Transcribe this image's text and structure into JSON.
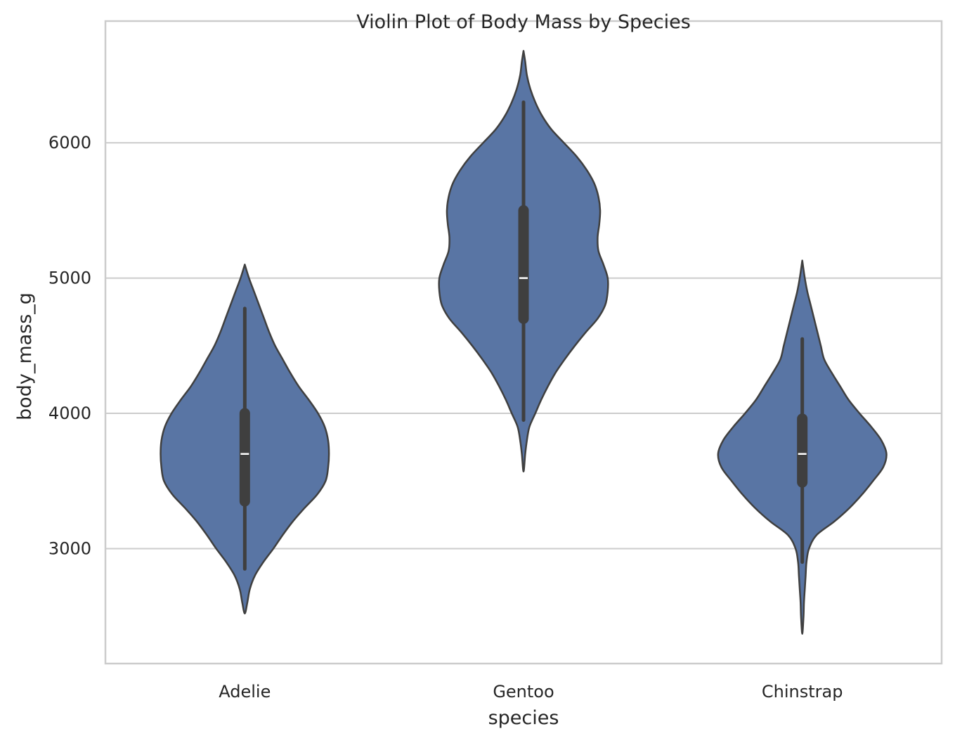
{
  "chart_data": {
    "type": "violin",
    "title": "Violin Plot of Body Mass by Species",
    "xlabel": "species",
    "ylabel": "body_mass_g",
    "ylim": [
      2150,
      6900
    ],
    "yticks": [
      3000,
      4000,
      5000,
      6000
    ],
    "grid": "horizontal",
    "categories": [
      "Adelie",
      "Gentoo",
      "Chinstrap"
    ],
    "colors": {
      "violin_fill": "#5975a4",
      "violin_edge": "#3f3f3f",
      "box": "#3f3f3f",
      "median": "#ffffff",
      "grid": "#cccccc",
      "frame": "#cccccc"
    },
    "violins": [
      {
        "name": "Adelie",
        "min": 2850,
        "q1": 3350,
        "median": 3700,
        "q3": 4000,
        "max": 4775,
        "density_top": 5100,
        "density_bottom": 2520,
        "profile": [
          [
            5100,
            0.0
          ],
          [
            5000,
            0.05
          ],
          [
            4900,
            0.11
          ],
          [
            4800,
            0.17
          ],
          [
            4700,
            0.23
          ],
          [
            4600,
            0.29
          ],
          [
            4500,
            0.36
          ],
          [
            4400,
            0.45
          ],
          [
            4300,
            0.54
          ],
          [
            4200,
            0.64
          ],
          [
            4100,
            0.76
          ],
          [
            4000,
            0.87
          ],
          [
            3900,
            0.95
          ],
          [
            3800,
            0.99
          ],
          [
            3700,
            1.0
          ],
          [
            3600,
            0.99
          ],
          [
            3500,
            0.96
          ],
          [
            3400,
            0.86
          ],
          [
            3300,
            0.71
          ],
          [
            3200,
            0.57
          ],
          [
            3100,
            0.45
          ],
          [
            3000,
            0.34
          ],
          [
            2900,
            0.22
          ],
          [
            2800,
            0.12
          ],
          [
            2700,
            0.06
          ],
          [
            2600,
            0.03
          ],
          [
            2520,
            0.0
          ]
        ]
      },
      {
        "name": "Gentoo",
        "min": 3950,
        "q1": 4700,
        "median": 5000,
        "q3": 5500,
        "max": 6300,
        "density_top": 6680,
        "density_bottom": 3570,
        "profile": [
          [
            6680,
            0.0
          ],
          [
            6600,
            0.02
          ],
          [
            6500,
            0.04
          ],
          [
            6400,
            0.08
          ],
          [
            6300,
            0.14
          ],
          [
            6200,
            0.22
          ],
          [
            6100,
            0.33
          ],
          [
            6000,
            0.48
          ],
          [
            5900,
            0.63
          ],
          [
            5800,
            0.75
          ],
          [
            5700,
            0.84
          ],
          [
            5600,
            0.89
          ],
          [
            5500,
            0.91
          ],
          [
            5400,
            0.9
          ],
          [
            5300,
            0.88
          ],
          [
            5200,
            0.89
          ],
          [
            5100,
            0.95
          ],
          [
            5000,
            1.0
          ],
          [
            4900,
            1.0
          ],
          [
            4800,
            0.97
          ],
          [
            4700,
            0.88
          ],
          [
            4600,
            0.74
          ],
          [
            4500,
            0.61
          ],
          [
            4400,
            0.49
          ],
          [
            4300,
            0.38
          ],
          [
            4200,
            0.29
          ],
          [
            4100,
            0.21
          ],
          [
            4000,
            0.14
          ],
          [
            3900,
            0.07
          ],
          [
            3800,
            0.04
          ],
          [
            3700,
            0.02
          ],
          [
            3570,
            0.0
          ]
        ]
      },
      {
        "name": "Chinstrap",
        "min": 2900,
        "q1": 3490,
        "median": 3700,
        "q3": 3960,
        "max": 4550,
        "density_top": 5130,
        "density_bottom": 2370,
        "profile": [
          [
            5130,
            0.0
          ],
          [
            5000,
            0.03
          ],
          [
            4900,
            0.06
          ],
          [
            4800,
            0.1
          ],
          [
            4700,
            0.14
          ],
          [
            4600,
            0.18
          ],
          [
            4500,
            0.22
          ],
          [
            4400,
            0.26
          ],
          [
            4300,
            0.35
          ],
          [
            4200,
            0.45
          ],
          [
            4100,
            0.55
          ],
          [
            4000,
            0.68
          ],
          [
            3900,
            0.82
          ],
          [
            3800,
            0.94
          ],
          [
            3700,
            1.0
          ],
          [
            3600,
            0.96
          ],
          [
            3500,
            0.84
          ],
          [
            3400,
            0.71
          ],
          [
            3300,
            0.56
          ],
          [
            3200,
            0.38
          ],
          [
            3100,
            0.17
          ],
          [
            3000,
            0.08
          ],
          [
            2900,
            0.05
          ],
          [
            2800,
            0.04
          ],
          [
            2700,
            0.03
          ],
          [
            2600,
            0.02
          ],
          [
            2500,
            0.015
          ],
          [
            2370,
            0.0
          ]
        ]
      }
    ]
  }
}
